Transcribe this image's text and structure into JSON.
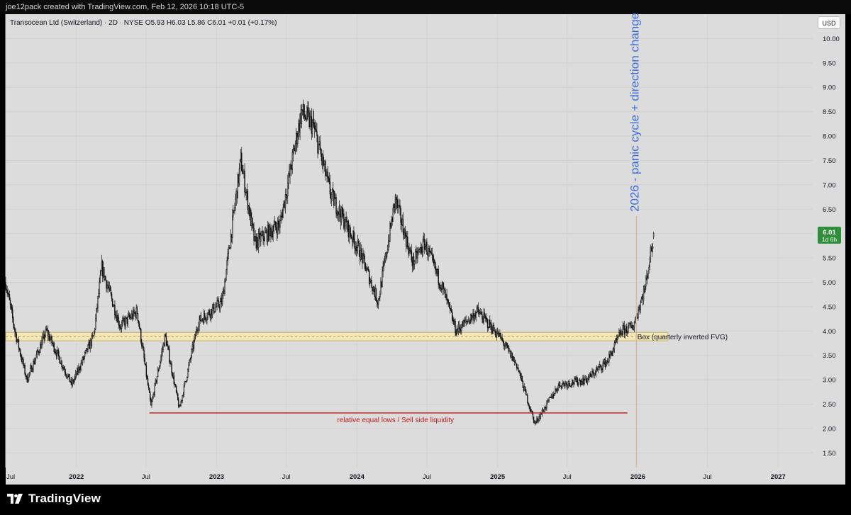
{
  "header": {
    "attribution": "joe12pack created with TradingView.com, Feb 12, 2026 10:18 UTC-5"
  },
  "legend": {
    "text": "Transocean Ltd (Switzerland) · 2D · NYSE  O5.93  H6.03  L5.86  C6.01  +0.01 (+0.17%)"
  },
  "currency_badge": "USD",
  "footer": {
    "brand": "TradingView"
  },
  "chart_data": {
    "type": "candlestick",
    "symbol": "Transocean Ltd (Switzerland)",
    "interval": "2D",
    "exchange": "NYSE",
    "last_bar": {
      "open": 5.93,
      "high": 6.03,
      "low": 5.86,
      "close": 6.01,
      "change": 0.01,
      "change_pct": 0.17
    },
    "ylim": [
      1.2,
      10.5
    ],
    "y_ticks": [
      "1.50",
      "2.00",
      "2.50",
      "3.00",
      "3.50",
      "4.00",
      "4.50",
      "5.00",
      "5.50",
      "6.00",
      "6.50",
      "7.00",
      "7.50",
      "8.00",
      "8.50",
      "9.00",
      "9.50",
      "10.00"
    ],
    "xlim": [
      "2021-07-01",
      "2027-04-01"
    ],
    "x_ticks": [
      {
        "date": "2021-07-01",
        "label": "Jul"
      },
      {
        "date": "2022-01-01",
        "label": "2022"
      },
      {
        "date": "2022-07-01",
        "label": "Jul"
      },
      {
        "date": "2023-01-01",
        "label": "2023"
      },
      {
        "date": "2023-07-01",
        "label": "Jul"
      },
      {
        "date": "2024-01-01",
        "label": "2024"
      },
      {
        "date": "2024-07-01",
        "label": "Jul"
      },
      {
        "date": "2025-01-01",
        "label": "2025"
      },
      {
        "date": "2025-07-01",
        "label": "Jul"
      },
      {
        "date": "2026-01-01",
        "label": "2026"
      },
      {
        "date": "2026-07-01",
        "label": "Jul"
      },
      {
        "date": "2027-01-01",
        "label": "2027"
      }
    ],
    "price_path": [
      {
        "date": "2021-07-01",
        "price": 5.0
      },
      {
        "date": "2021-07-25",
        "price": 4.0
      },
      {
        "date": "2021-08-25",
        "price": 3.0
      },
      {
        "date": "2021-10-15",
        "price": 4.0
      },
      {
        "date": "2021-12-20",
        "price": 2.9
      },
      {
        "date": "2022-02-15",
        "price": 3.9
      },
      {
        "date": "2022-03-08",
        "price": 5.3
      },
      {
        "date": "2022-04-25",
        "price": 4.1
      },
      {
        "date": "2022-06-08",
        "price": 4.4
      },
      {
        "date": "2022-07-14",
        "price": 2.45
      },
      {
        "date": "2022-08-20",
        "price": 3.9
      },
      {
        "date": "2022-09-26",
        "price": 2.4
      },
      {
        "date": "2022-11-15",
        "price": 4.2
      },
      {
        "date": "2023-01-15",
        "price": 4.6
      },
      {
        "date": "2023-03-05",
        "price": 7.5
      },
      {
        "date": "2023-04-10",
        "price": 5.8
      },
      {
        "date": "2023-06-15",
        "price": 6.2
      },
      {
        "date": "2023-08-10",
        "price": 8.5
      },
      {
        "date": "2023-09-10",
        "price": 8.2
      },
      {
        "date": "2023-10-25",
        "price": 6.8
      },
      {
        "date": "2024-01-10",
        "price": 5.6
      },
      {
        "date": "2024-02-25",
        "price": 4.6
      },
      {
        "date": "2024-04-10",
        "price": 6.7
      },
      {
        "date": "2024-05-25",
        "price": 5.4
      },
      {
        "date": "2024-06-25",
        "price": 5.8
      },
      {
        "date": "2024-08-10",
        "price": 4.9
      },
      {
        "date": "2024-09-15",
        "price": 4.0
      },
      {
        "date": "2024-11-10",
        "price": 4.4
      },
      {
        "date": "2025-01-05",
        "price": 3.9
      },
      {
        "date": "2025-02-20",
        "price": 3.3
      },
      {
        "date": "2025-04-08",
        "price": 2.1
      },
      {
        "date": "2025-06-10",
        "price": 2.9
      },
      {
        "date": "2025-08-20",
        "price": 3.0
      },
      {
        "date": "2025-10-15",
        "price": 3.4
      },
      {
        "date": "2025-11-20",
        "price": 4.0
      },
      {
        "date": "2025-12-20",
        "price": 4.1
      },
      {
        "date": "2026-01-20",
        "price": 4.9
      },
      {
        "date": "2026-02-12",
        "price": 6.01
      }
    ],
    "annotations": [
      {
        "type": "horizontal_line",
        "label": "relative equal lows / Sell side liquidity",
        "price": 2.32,
        "from": "2022-07-10",
        "to": "2025-12-05",
        "color": "#b71c1c"
      },
      {
        "type": "box",
        "label": "Box (quarterly inverted FVG)",
        "price_low": 3.8,
        "price_high": 3.97,
        "from": "2021-07-01",
        "to": "2026-03-20",
        "fill": "#f3e6b8",
        "border": "#c8b46a"
      },
      {
        "type": "vertical_text",
        "label": "2026 - panic cycle + direction change",
        "date": "2026-01-01",
        "color": "#3d6ee0"
      },
      {
        "type": "vertical_line",
        "date": "2025-12-28",
        "color": "#d6b7a0"
      }
    ],
    "last_price_label": {
      "price": "6.01",
      "countdown": "1d 6h",
      "color": "#2f8f3a"
    }
  }
}
